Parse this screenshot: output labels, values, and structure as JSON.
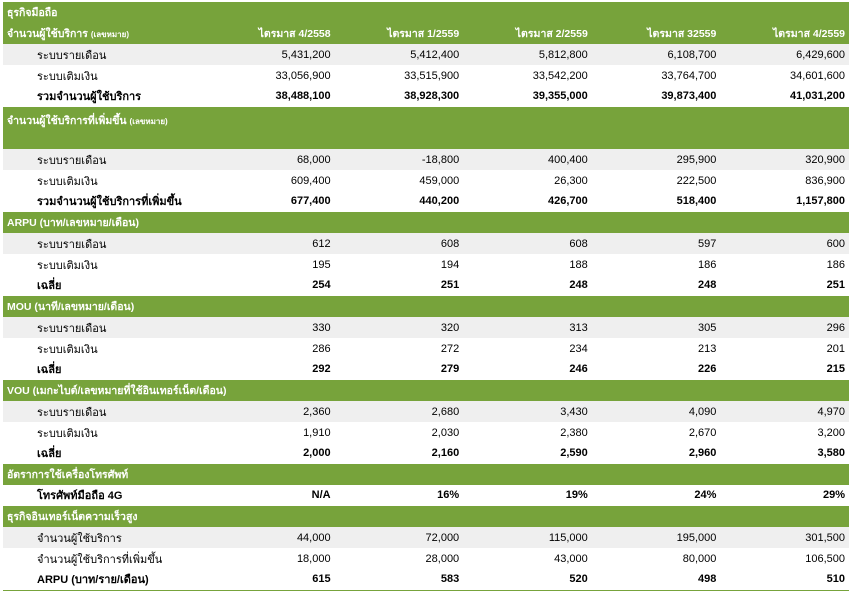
{
  "title": "ธุรกิจมือถือ",
  "header": {
    "label_main": "จำนวนผู้ใช้บริการ",
    "label_unit": "(เลขหมาย)",
    "periods": [
      "ไตรมาส 4/2558",
      "ไตรมาส 1/2559",
      "ไตรมาส 2/2559",
      "ไตรมาส 32559",
      "ไตรมาส 4/2559"
    ]
  },
  "subscribers": {
    "rows": [
      {
        "label": "ระบบรายเดือน",
        "values": [
          "5,431,200",
          "5,412,400",
          "5,812,800",
          "6,108,700",
          "6,429,600"
        ]
      },
      {
        "label": "ระบบเติมเงิน",
        "values": [
          "33,056,900",
          "33,515,900",
          "33,542,200",
          "33,764,700",
          "34,601,600"
        ]
      },
      {
        "label": "รวมจำนวนผู้ใช้บริการ",
        "values": [
          "38,488,100",
          "38,928,300",
          "39,355,000",
          "39,873,400",
          "41,031,200"
        ]
      }
    ]
  },
  "net_adds": {
    "label_main": "จำนวนผู้ใช้บริการที่เพิ่มขึ้น",
    "label_unit": "(เลขหมาย)",
    "rows": [
      {
        "label": "ระบบรายเดือน",
        "values": [
          "68,000",
          "-18,800",
          "400,400",
          "295,900",
          "320,900"
        ]
      },
      {
        "label": "ระบบเติมเงิน",
        "values": [
          "609,400",
          "459,000",
          "26,300",
          "222,500",
          "836,900"
        ]
      },
      {
        "label": "รวมจำนวนผู้ใช้บริการที่เพิ่มขึ้น",
        "values": [
          "677,400",
          "440,200",
          "426,700",
          "518,400",
          "1,157,800"
        ]
      }
    ]
  },
  "arpu": {
    "label": "ARPU (บาท/เลขหมาย/เดือน)",
    "rows": [
      {
        "label": "ระบบรายเดือน",
        "values": [
          "612",
          "608",
          "608",
          "597",
          "600"
        ]
      },
      {
        "label": "ระบบเติมเงิน",
        "values": [
          "195",
          "194",
          "188",
          "186",
          "186"
        ]
      },
      {
        "label": "เฉลี่ย",
        "values": [
          "254",
          "251",
          "248",
          "248",
          "251"
        ]
      }
    ]
  },
  "mou": {
    "label": "MOU (นาที/เลขหมาย/เดือน)",
    "rows": [
      {
        "label": "ระบบรายเดือน",
        "values": [
          "330",
          "320",
          "313",
          "305",
          "296"
        ]
      },
      {
        "label": "ระบบเติมเงิน",
        "values": [
          "286",
          "272",
          "234",
          "213",
          "201"
        ]
      },
      {
        "label": "เฉลี่ย",
        "values": [
          "292",
          "279",
          "246",
          "226",
          "215"
        ]
      }
    ]
  },
  "vou": {
    "label": "VOU (เมกะไบต์/เลขหมายที่ใช้อินเทอร์เน็ต/เดือน)",
    "rows": [
      {
        "label": "ระบบรายเดือน",
        "values": [
          "2,360",
          "2,680",
          "3,430",
          "4,090",
          "4,970"
        ]
      },
      {
        "label": "ระบบเติมเงิน",
        "values": [
          "1,910",
          "2,030",
          "2,380",
          "2,670",
          "3,200"
        ]
      },
      {
        "label": "เฉลี่ย",
        "values": [
          "2,000",
          "2,160",
          "2,590",
          "2,960",
          "3,580"
        ]
      }
    ]
  },
  "device": {
    "label": "อัตราการใช้เครื่องโทรศัพท์",
    "rows": [
      {
        "label": "โทรศัพท์มือถือ 4G",
        "values": [
          "N/A",
          "16%",
          "19%",
          "24%",
          "29%"
        ]
      }
    ]
  },
  "broadband": {
    "label": "ธุรกิจอินเทอร์เน็ตความเร็วสูง",
    "rows": [
      {
        "label": "จำนวนผู้ใช้บริการ",
        "values": [
          "44,000",
          "72,000",
          "115,000",
          "195,000",
          "301,500"
        ]
      },
      {
        "label": "จำนวนผู้ใช้บริการที่เพิ่มขึ้น",
        "values": [
          "18,000",
          "28,000",
          "43,000",
          "80,000",
          "106,500"
        ]
      },
      {
        "label": "ARPU (บาท/ราย/เดือน)",
        "values": [
          "615",
          "583",
          "520",
          "498",
          "510"
        ]
      }
    ]
  }
}
